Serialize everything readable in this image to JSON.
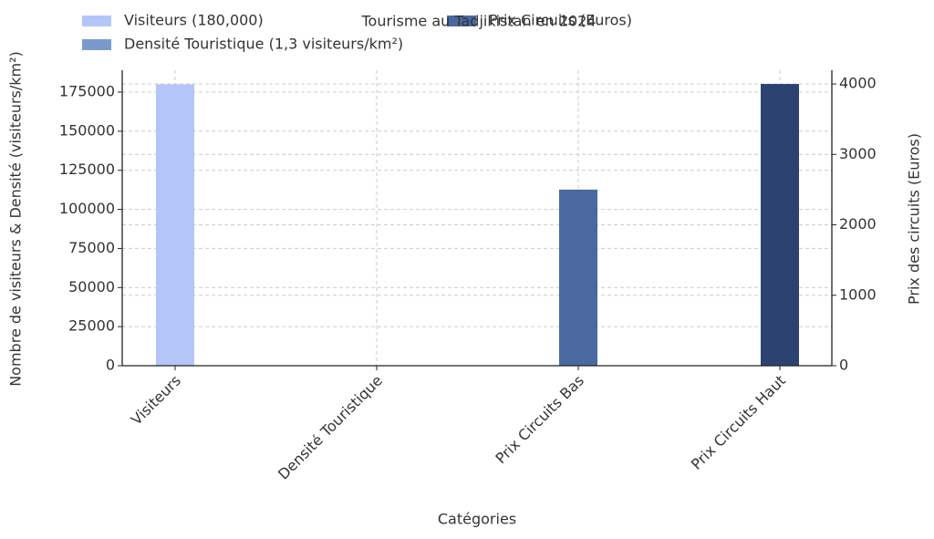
{
  "chart_data": {
    "type": "bar",
    "title": "Tourisme au Tadjikistan en 2024",
    "x_label": "Catégories",
    "y_label": "Nombre de visiteurs & Densité (visiteurs/km²)",
    "y2_label": "Prix des circuits (Euros)",
    "categories": [
      "Visiteurs",
      "Densité Touristique",
      "Prix Circuits Bas",
      "Prix Circuits Haut"
    ],
    "series": [
      {
        "name": "Visiteurs (180,000)",
        "color": "#b3c6f7",
        "values": [
          180000,
          null,
          null,
          null
        ]
      },
      {
        "name": "Densité Touristique (1,3 visiteurs/km²)",
        "color": "#7b9acc",
        "values": [
          null,
          1.3,
          null,
          null
        ]
      },
      {
        "name": "Prix Circuits (Euros)",
        "color": "#4a69a0",
        "axis": "y2",
        "values": [
          null,
          null,
          2500,
          4000
        ],
        "colors": [
          null,
          null,
          "#4a69a0",
          "#2c4372"
        ]
      }
    ],
    "ylim": [
      0,
      189000
    ],
    "yticks": [
      0,
      25000,
      50000,
      75000,
      100000,
      125000,
      150000,
      175000
    ],
    "y2lim": [
      0,
      4195
    ],
    "y2ticks": [
      0,
      1000,
      2000,
      3000,
      4000
    ],
    "grid": true
  }
}
